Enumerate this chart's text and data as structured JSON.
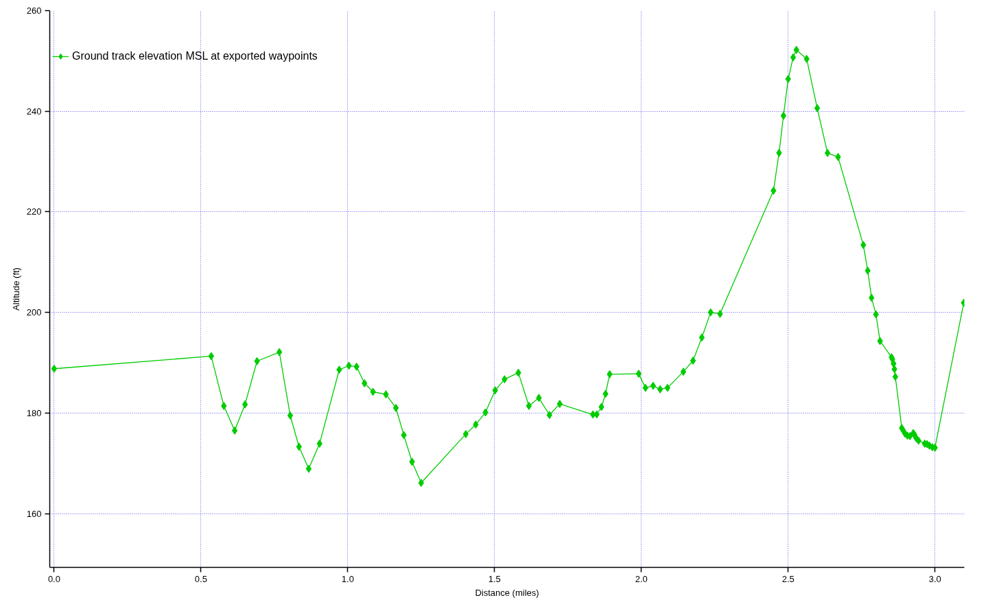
{
  "chart_data": {
    "type": "line",
    "xlabel": "Distance (miles)",
    "ylabel": "Altitude (ft)",
    "x": [
      0.0,
      0.535,
      0.578,
      0.615,
      0.65,
      0.691,
      0.767,
      0.804,
      0.834,
      0.867,
      0.904,
      0.971,
      1.004,
      1.03,
      1.057,
      1.086,
      1.13,
      1.164,
      1.191,
      1.219,
      1.25,
      1.402,
      1.436,
      1.469,
      1.502,
      1.534,
      1.581,
      1.617,
      1.651,
      1.687,
      1.722,
      1.835,
      1.848,
      1.864,
      1.878,
      1.892,
      1.991,
      2.014,
      2.04,
      2.064,
      2.089,
      2.143,
      2.176,
      2.206,
      2.236,
      2.268,
      2.45,
      2.469,
      2.484,
      2.5,
      2.517,
      2.528,
      2.563,
      2.599,
      2.634,
      2.67,
      2.756,
      2.771,
      2.784,
      2.799,
      2.813,
      2.852,
      2.855,
      2.859,
      2.862,
      2.865,
      2.887,
      2.892,
      2.898,
      2.906,
      2.915,
      2.926,
      2.93,
      2.936,
      2.944,
      2.965,
      2.973,
      2.981,
      2.991,
      3.0,
      3.098
    ],
    "series": [
      {
        "name": "Ground track elevation MSL at exported waypoints",
        "color": "#00cc00",
        "values": [
          188.8,
          191.3,
          181.4,
          176.5,
          181.7,
          190.3,
          192.1,
          179.5,
          173.3,
          168.9,
          173.9,
          188.6,
          189.4,
          189.2,
          185.9,
          184.2,
          183.7,
          181.0,
          175.6,
          170.3,
          166.1,
          175.8,
          177.7,
          180.1,
          184.5,
          186.7,
          188.0,
          181.4,
          183.0,
          179.6,
          181.8,
          179.7,
          179.7,
          181.2,
          183.8,
          187.7,
          187.8,
          185.0,
          185.4,
          184.7,
          185.0,
          188.2,
          190.4,
          195.0,
          200.0,
          199.7,
          224.2,
          231.7,
          239.1,
          246.4,
          250.7,
          252.2,
          250.4,
          240.6,
          231.7,
          230.9,
          213.4,
          208.3,
          202.9,
          199.6,
          194.3,
          191.1,
          190.7,
          189.8,
          188.7,
          187.2,
          177.0,
          176.5,
          175.9,
          175.5,
          175.4,
          176.0,
          175.7,
          175.0,
          174.5,
          173.9,
          173.8,
          173.5,
          173.2,
          173.1,
          201.9
        ]
      }
    ],
    "xlim": [
      -0.015,
      3.1
    ],
    "ylim": [
      149.3,
      260
    ],
    "xticks": [
      {
        "value": 0,
        "label": "0.0"
      },
      0.5,
      {
        "value": 1,
        "label": "1.0"
      },
      1.5,
      {
        "value": 2,
        "label": "2.0"
      },
      2.5,
      {
        "value": 3,
        "label": "3.0"
      }
    ],
    "yticks": [
      160,
      180,
      200,
      220,
      240,
      260
    ],
    "grid": true,
    "legend": "top left",
    "marker": "diamond",
    "line_style": "solid"
  }
}
